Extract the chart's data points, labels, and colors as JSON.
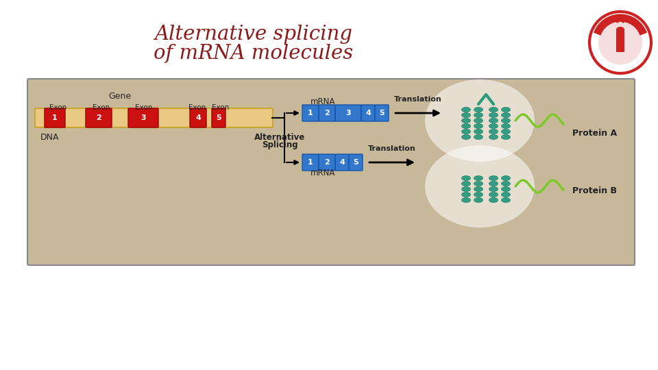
{
  "title_line1": "Alternative splicing",
  "title_line2": "of mRNA molecules",
  "title_color": "#8B1A1A",
  "bg_color": "#ffffff",
  "diagram_bg": "#C8B89A",
  "diagram_border": "#999999",
  "exon_tan_color": "#E8C882",
  "exon_red_color": "#CC1111",
  "exon_blue_color": "#3377CC",
  "gene_label": "Gene",
  "dna_label": "DNA",
  "alt_splicing_label1": "Alternative",
  "alt_splicing_label2": "Splicing",
  "mrna_top_label": "mRNA",
  "mrna_bot_label": "mRNA",
  "translation_label": "Translation",
  "protein_a_label": "Protein A",
  "protein_b_label": "Protein B",
  "teal_color": "#2A9B7A",
  "lteal_color": "#7DC82A",
  "white_glow": "#ffffff"
}
